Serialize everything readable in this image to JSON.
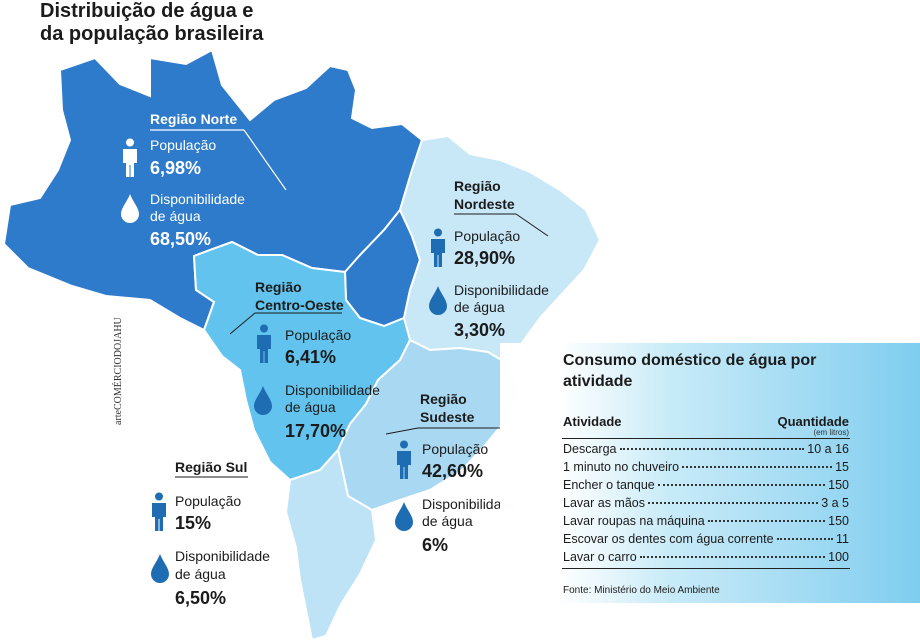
{
  "title": "Distribuição de água e da população brasileira",
  "credit": "arteCOMÉRCIODOJAHU",
  "regions": {
    "norte": {
      "name": "Região Norte",
      "population_label": "População",
      "population": "6,98%",
      "water_label_1": "Disponibilidade",
      "water_label_2": "de água",
      "water": "68,50%"
    },
    "nordeste": {
      "name_1": "Região",
      "name_2": "Nordeste",
      "population_label": "População",
      "population": "28,90%",
      "water_label_1": "Disponibilidade",
      "water_label_2": "de água",
      "water": "3,30%"
    },
    "centro_oeste": {
      "name_1": "Região",
      "name_2": "Centro-Oeste",
      "population_label": "População",
      "population": "6,41%",
      "water_label_1": "Disponibilidade",
      "water_label_2": "de água",
      "water": "17,70%"
    },
    "sudeste": {
      "name_1": "Região",
      "name_2": "Sudeste",
      "population_label": "População",
      "population": "42,60%",
      "water_label_1": "Disponibilidade",
      "water_label_2": "de água",
      "water": "6%"
    },
    "sul": {
      "name": "Região Sul",
      "population_label": "População",
      "population": "15%",
      "water_label_1": "Disponibilidade",
      "water_label_2": "de água",
      "water": "6,50%"
    }
  },
  "consumo": {
    "title": "Consumo doméstico de água por atividade",
    "col_activity": "Atividade",
    "col_quantity": "Quantidade",
    "col_unit": "(em litros)",
    "rows": [
      {
        "activity": "Descarga",
        "quantity": "10 a 16"
      },
      {
        "activity": "1 minuto no chuveiro",
        "quantity": "15"
      },
      {
        "activity": "Encher o tanque",
        "quantity": "150"
      },
      {
        "activity": "Lavar as mãos",
        "quantity": "3 a 5"
      },
      {
        "activity": "Lavar roupas na máquina",
        "quantity": "150"
      },
      {
        "activity": "Escovar os dentes com água corrente",
        "quantity": "11"
      },
      {
        "activity": "Lavar o carro",
        "quantity": "100"
      }
    ],
    "source": "Fonte: Ministério do Meio Ambiente"
  },
  "colors": {
    "norte": "#2e7bcb",
    "centro_oeste": "#62c4ee",
    "nordeste": "#c8e8f8",
    "sudeste": "#a9d9f2",
    "sul": "#bfe3f6",
    "icon": "#1e6db3"
  }
}
